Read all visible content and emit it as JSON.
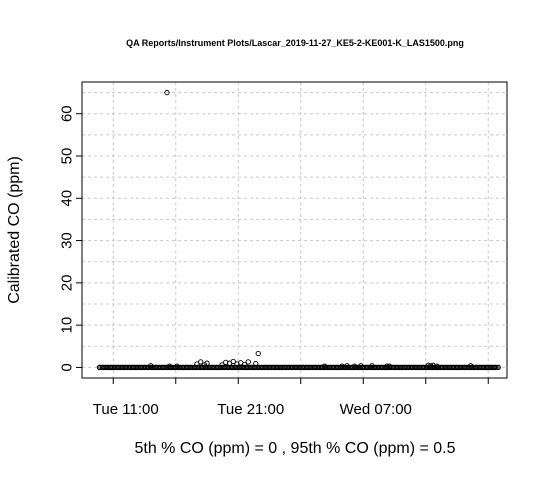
{
  "chart_data": {
    "type": "scatter",
    "title": "QA Reports/Instrument Plots/Lascar_2019-11-27_KE5-2-KE001-K_LAS1500.png",
    "ylabel": "Calibrated CO (ppm)",
    "xlabel": "5th % CO (ppm) =  0 , 95th % CO (ppm)  =  0.5",
    "y_ticks": [
      0,
      10,
      20,
      30,
      40,
      50,
      60
    ],
    "x_ticks": [
      "Tue 11:00",
      "Tue 21:00",
      "Wed 07:00"
    ],
    "ylim": [
      -2.5,
      67.5
    ],
    "xlim_hours": [
      7.5,
      41.5
    ],
    "x_tick_hours": [
      11,
      21,
      31
    ],
    "grid": true,
    "series": [
      {
        "x_hours": [
          8.9,
          9.2,
          9.5,
          9.8,
          10.1,
          10.4,
          10.7,
          11.0,
          11.3,
          11.6,
          11.9,
          12.2,
          12.5,
          12.8,
          13.1,
          13.4,
          13.7,
          14.0,
          14.3,
          14.6,
          15.0,
          15.3,
          15.6,
          15.9,
          16.2,
          16.5,
          16.8,
          17.1,
          17.4,
          17.7,
          18.0,
          18.3,
          18.6,
          18.9,
          19.2,
          19.5,
          19.8,
          20.1,
          20.4,
          20.7,
          21.0,
          21.3,
          21.6,
          21.9,
          22.2,
          22.5,
          22.8,
          23.1,
          23.4,
          23.7,
          24.0,
          24.3,
          24.6,
          24.9,
          25.2,
          25.5,
          25.8,
          26.1,
          26.4,
          26.7,
          27.0,
          27.3,
          27.6,
          27.9,
          28.2,
          28.5,
          28.8,
          29.1,
          29.4,
          29.7,
          30.0,
          30.3,
          30.6,
          30.9,
          31.2,
          31.5,
          31.8,
          32.1,
          32.4,
          32.7,
          33.0,
          33.3,
          33.6,
          33.9,
          34.2,
          34.5,
          34.8,
          35.1,
          35.4,
          35.7,
          36.0,
          36.3,
          36.6,
          36.9,
          37.2,
          37.5,
          37.8,
          38.1,
          38.4,
          38.7,
          39.0,
          39.3,
          39.6,
          39.9,
          40.2,
          40.5,
          40.8,
          13.0,
          14.5,
          15.1,
          16.7,
          17.0,
          17.3,
          17.5,
          18.7,
          19.0,
          19.3,
          19.6,
          19.9,
          20.2,
          20.5,
          20.8,
          21.4,
          21.6,
          26.9,
          28.3,
          28.7,
          29.3,
          29.8,
          30.7,
          31.9,
          32.1,
          35.2,
          35.4,
          35.6,
          35.9,
          38.6,
          14.3
        ],
        "y": [
          0,
          0,
          0,
          0,
          0,
          0,
          0,
          0,
          0,
          0,
          0,
          0,
          0,
          0,
          0,
          0,
          0,
          0,
          0,
          0,
          0,
          0,
          0,
          0,
          0,
          0,
          0,
          0,
          0,
          0,
          0,
          0,
          0,
          0,
          0,
          0,
          0,
          0,
          0,
          0,
          0,
          0,
          0,
          0,
          0,
          0,
          0,
          0,
          0,
          0,
          0,
          0,
          0,
          0,
          0,
          0,
          0,
          0,
          0,
          0,
          0,
          0,
          0,
          0,
          0,
          0,
          0,
          0,
          0,
          0,
          0,
          0,
          0,
          0,
          0,
          0,
          0,
          0,
          0,
          0,
          0,
          0,
          0,
          0,
          0,
          0,
          0,
          0,
          0,
          0,
          0,
          0,
          0,
          0,
          0,
          0,
          0,
          0,
          0,
          0,
          0,
          0,
          0,
          0,
          0,
          0,
          0,
          0.4,
          0.3,
          0.3,
          0.8,
          1.3,
          0.6,
          1.0,
          0.6,
          1.2,
          1.0,
          1.4,
          0.8,
          1.1,
          0.7,
          1.3,
          0.9,
          3.3,
          0.3,
          0.3,
          0.4,
          0.3,
          0.4,
          0.4,
          0.3,
          0.3,
          0.5,
          0.4,
          0.5,
          0.3,
          0.4,
          65.0
        ]
      }
    ]
  }
}
